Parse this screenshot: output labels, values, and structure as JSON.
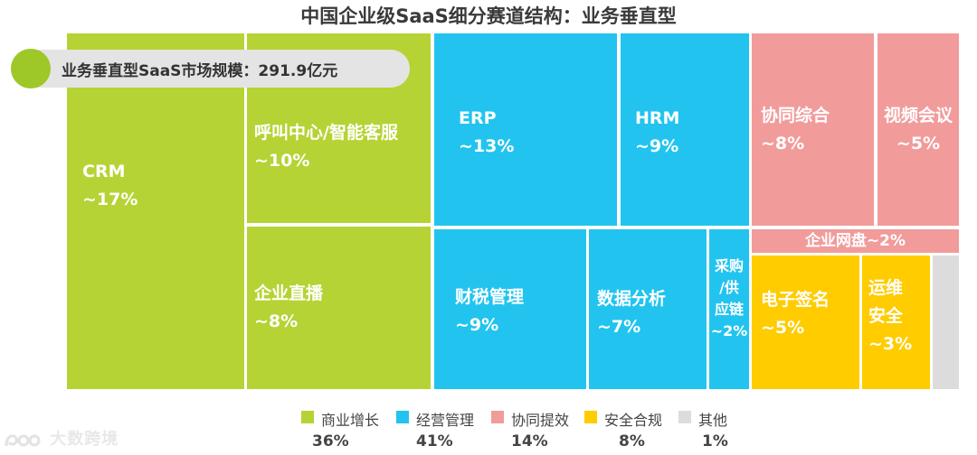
{
  "chart_data": {
    "type": "treemap",
    "title": "中国企业级SaaS细分赛道结构：业务垂直型",
    "market_size_label": "业务垂直型SaaS市场规模：291.9亿元",
    "colors": {
      "commercial_growth": "#b5d334",
      "operations": "#22c4ef",
      "collaboration": "#f29b9b",
      "security": "#ffcc00",
      "other": "#dcdcdc"
    },
    "segments": [
      {
        "name": "CRM",
        "share": "~17%",
        "group": "commercial_growth"
      },
      {
        "name": "呼叫中心/智能客服",
        "share": "~10%",
        "group": "commercial_growth"
      },
      {
        "name": "企业直播",
        "share": "~8%",
        "group": "commercial_growth"
      },
      {
        "name": "ERP",
        "share": "~13%",
        "group": "operations"
      },
      {
        "name": "HRM",
        "share": "~9%",
        "group": "operations"
      },
      {
        "name": "财税管理",
        "share": "~9%",
        "group": "operations"
      },
      {
        "name": "数据分析",
        "share": "~7%",
        "group": "operations"
      },
      {
        "name": "采购/供应链",
        "share": "~2%",
        "group": "operations"
      },
      {
        "name": "协同综合",
        "share": "~8%",
        "group": "collaboration"
      },
      {
        "name": "视频会议",
        "share": "~5%",
        "group": "collaboration"
      },
      {
        "name": "企业网盘",
        "share": "~2%",
        "group": "collaboration"
      },
      {
        "name": "电子签名",
        "share": "~5%",
        "group": "security"
      },
      {
        "name": "运维安全",
        "share": "~3%",
        "group": "security"
      },
      {
        "name": "其他",
        "share": "",
        "group": "other"
      }
    ],
    "legend": [
      {
        "name": "商业增长",
        "share": "36%",
        "group": "commercial_growth"
      },
      {
        "name": "经营管理",
        "share": "41%",
        "group": "operations"
      },
      {
        "name": "协同提效",
        "share": "14%",
        "group": "collaboration"
      },
      {
        "name": "安全合规",
        "share": "8%",
        "group": "security"
      },
      {
        "name": "其他",
        "share": "1%",
        "group": "other"
      }
    ]
  },
  "watermark": {
    "text": "大数跨境",
    "logo_icon": "ebrun-logo-icon"
  }
}
